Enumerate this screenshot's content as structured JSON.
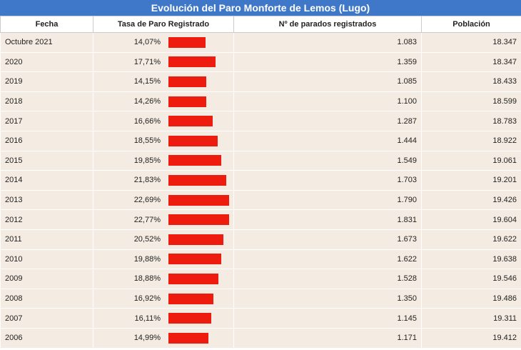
{
  "table": {
    "title": "Evolución del Paro Monforte de Lemos (Lugo)",
    "headers": [
      "Fecha",
      "Tasa de Paro Registrado",
      "Nº de parados registrados",
      "Población"
    ],
    "rows": [
      [
        "Octubre 2021",
        {
          "value": 14.07,
          "label": "14,07%"
        },
        "1.083",
        "18.347"
      ],
      [
        "2020",
        {
          "value": 17.71,
          "label": "17,71%"
        },
        "1.359",
        "18.347"
      ],
      [
        "2019",
        {
          "value": 14.15,
          "label": "14,15%"
        },
        "1.085",
        "18.433"
      ],
      [
        "2018",
        {
          "value": 14.26,
          "label": "14,26%"
        },
        "1.100",
        "18.599"
      ],
      [
        "2017",
        {
          "value": 16.66,
          "label": "16,66%"
        },
        "1.287",
        "18.783"
      ],
      [
        "2016",
        {
          "value": 18.55,
          "label": "18,55%"
        },
        "1.444",
        "18.922"
      ],
      [
        "2015",
        {
          "value": 19.85,
          "label": "19,85%"
        },
        "1.549",
        "19.061"
      ],
      [
        "2014",
        {
          "value": 21.83,
          "label": "21,83%"
        },
        "1.703",
        "19.201"
      ],
      [
        "2013",
        {
          "value": 22.69,
          "label": "22,69%"
        },
        "1.790",
        "19.426"
      ],
      [
        "2012",
        {
          "value": 22.77,
          "label": "22,77%"
        },
        "1.831",
        "19.604"
      ],
      [
        "2011",
        {
          "value": 20.52,
          "label": "20,52%"
        },
        "1.673",
        "19.622"
      ],
      [
        "2010",
        {
          "value": 19.88,
          "label": "19,88%"
        },
        "1.622",
        "19.638"
      ],
      [
        "2009",
        {
          "value": 18.88,
          "label": "18,88%"
        },
        "1.528",
        "19.546"
      ],
      [
        "2008",
        {
          "value": 16.92,
          "label": "16,92%"
        },
        "1.350",
        "19.486"
      ],
      [
        "2007",
        {
          "value": 16.11,
          "label": "16,11%"
        },
        "1.145",
        "19.311"
      ],
      [
        "2006",
        {
          "value": 14.99,
          "label": "14,99%"
        },
        "1.171",
        "19.412"
      ]
    ]
  }
}
